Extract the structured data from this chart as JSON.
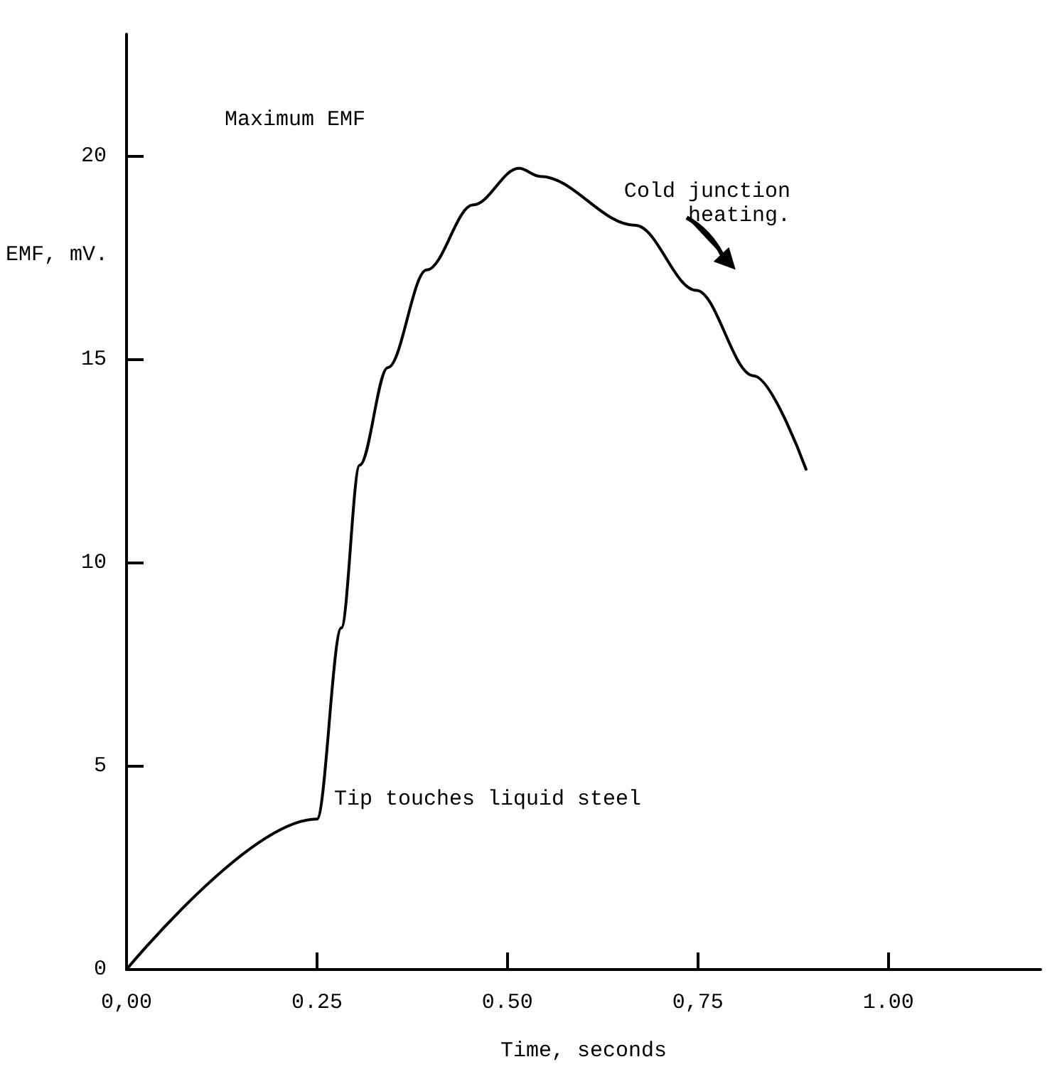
{
  "chart_data": {
    "type": "line",
    "xlabel": "Time, seconds",
    "ylabel": "EMF, mV.",
    "x": [
      0,
      0.25,
      0.282,
      0.306,
      0.343,
      0.394,
      0.455,
      0.515,
      0.543,
      0.668,
      0.748,
      0.823,
      0.892
    ],
    "series": [
      {
        "color": "#000000",
        "values": [
          0,
          3.7,
          8.4,
          12.4,
          14.8,
          17.2,
          18.8,
          19.7,
          19.5,
          18.3,
          16.7,
          14.6,
          12.3
        ]
      }
    ],
    "xlim": [
      0,
      1.2
    ],
    "ylim": [
      0,
      23
    ],
    "xticks": [
      {
        "value": 0,
        "label": "0,00"
      },
      {
        "value": 0.25,
        "label": "0.25"
      },
      {
        "value": 0.5,
        "label": "0.50"
      },
      {
        "value": 0.75,
        "label": "0,75"
      },
      {
        "value": 1,
        "label": "1.00"
      }
    ],
    "yticks": [
      0,
      5,
      10,
      15,
      20
    ],
    "annotations": [
      "Maximum EMF",
      {
        "text": "Cold junction\n     heating.",
        "x": 0.668,
        "y": 18.3
      },
      {
        "text": "Tip touches liquid steel",
        "x": 0.25,
        "y": 3.7
      }
    ],
    "grid": false,
    "marker": "none",
    "line_style": "solid"
  }
}
